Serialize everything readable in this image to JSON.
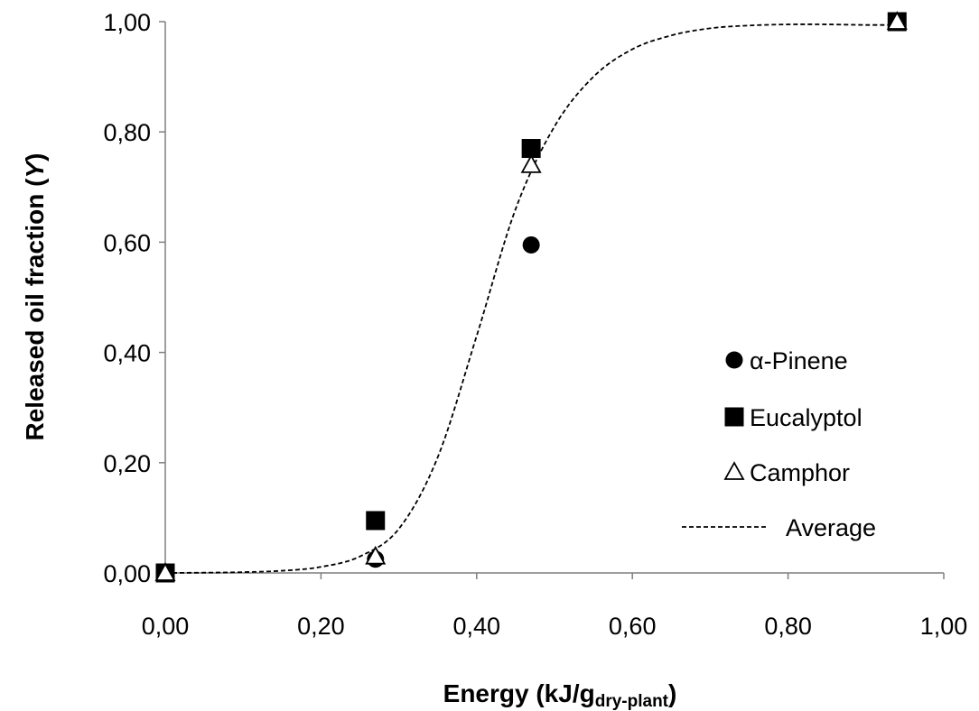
{
  "chart_data": {
    "type": "scatter",
    "title": "",
    "xlabel": "Energy (kJ/g",
    "xlabel_sub": "dry-plant",
    "xlabel_close": ")",
    "ylabel": "Released oil fraction (",
    "ylabel_var": "Y",
    "ylabel_close": ")",
    "xlim": [
      0,
      1
    ],
    "ylim": [
      0,
      1
    ],
    "x_ticks": [
      0,
      0.2,
      0.4,
      0.6,
      0.8,
      1.0
    ],
    "y_ticks": [
      0,
      0.2,
      0.4,
      0.6,
      0.8,
      1.0
    ],
    "x_tick_labels": [
      "0,00",
      "0,20",
      "0,40",
      "0,60",
      "0,80",
      "1,00"
    ],
    "y_tick_labels": [
      "0,00",
      "0,20",
      "0,40",
      "0,60",
      "0,80",
      "1,00"
    ],
    "grid": false,
    "legend_position": "right",
    "series": [
      {
        "name": "α-Pinene",
        "marker": "circle",
        "color": "#000000",
        "points": [
          [
            0.0,
            0.0
          ],
          [
            0.27,
            0.025
          ],
          [
            0.47,
            0.595
          ],
          [
            0.94,
            1.0
          ]
        ]
      },
      {
        "name": "Eucalyptol",
        "marker": "square",
        "color": "#000000",
        "points": [
          [
            0.0,
            0.0
          ],
          [
            0.27,
            0.095
          ],
          [
            0.47,
            0.77
          ],
          [
            0.94,
            1.0
          ]
        ]
      },
      {
        "name": "Camphor",
        "marker": "triangle-open",
        "color": "#000000",
        "points": [
          [
            0.0,
            0.0
          ],
          [
            0.27,
            0.03
          ],
          [
            0.47,
            0.74
          ],
          [
            0.94,
            1.0
          ]
        ]
      }
    ],
    "curve": {
      "name": "Average",
      "style": "dashed",
      "points": [
        [
          0.0,
          0.0
        ],
        [
          0.05,
          0.0005
        ],
        [
          0.1,
          0.0015
        ],
        [
          0.15,
          0.004
        ],
        [
          0.2,
          0.011
        ],
        [
          0.25,
          0.03
        ],
        [
          0.3,
          0.08
        ],
        [
          0.35,
          0.21
        ],
        [
          0.4,
          0.43
        ],
        [
          0.45,
          0.66
        ],
        [
          0.5,
          0.81
        ],
        [
          0.55,
          0.9
        ],
        [
          0.6,
          0.95
        ],
        [
          0.65,
          0.975
        ],
        [
          0.7,
          0.988
        ],
        [
          0.75,
          0.993
        ],
        [
          0.8,
          0.995
        ],
        [
          0.85,
          0.995
        ],
        [
          0.9,
          0.994
        ],
        [
          0.94,
          0.994
        ]
      ]
    }
  }
}
